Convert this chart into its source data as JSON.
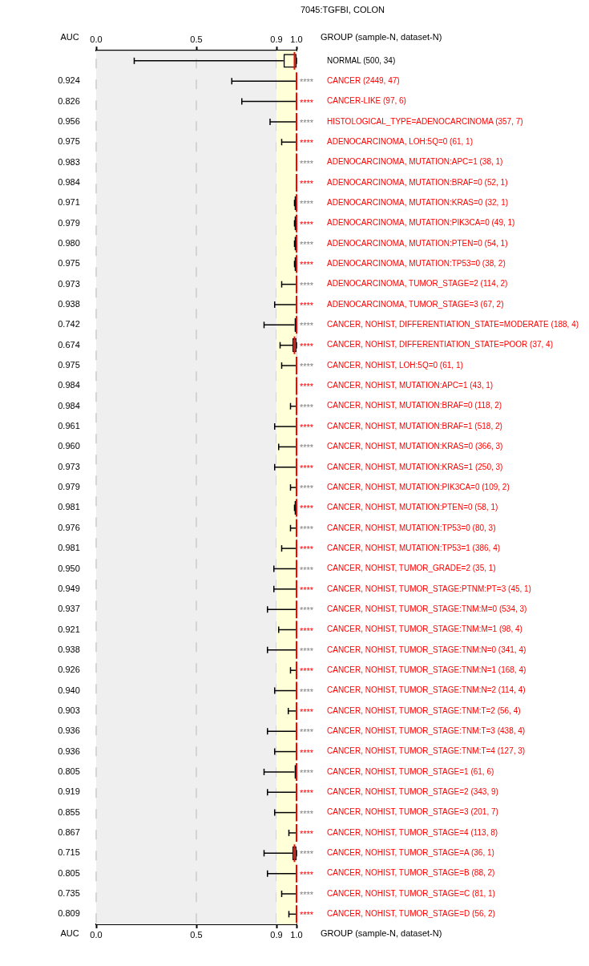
{
  "chart_data": {
    "type": "box",
    "orientation": "horizontal",
    "title": "7045:TGFBI, COLON",
    "ylabel": "GROUP (sample-N, dataset-N)",
    "categories": [
      "NORMAL (500, 34)",
      "CANCER (2449, 47)",
      "CANCER-LIKE (97, 6)",
      "HISTOLOGICAL_TYPE=ADENOCARCINOMA (357, 7)",
      "ADENOCARCINOMA, LOH:5Q=0 (61, 1)",
      "ADENOCARCINOMA, MUTATION:APC=1 (38, 1)",
      "ADENOCARCINOMA, MUTATION:BRAF=0 (52, 1)",
      "ADENOCARCINOMA, MUTATION:KRAS=0 (32, 1)",
      "ADENOCARCINOMA, MUTATION:PIK3CA=0 (49, 1)",
      "ADENOCARCINOMA, MUTATION:PTEN=0 (54, 1)",
      "ADENOCARCINOMA, MUTATION:TP53=0 (38, 2)",
      "ADENOCARCINOMA, TUMOR_STAGE=2 (114, 2)",
      "ADENOCARCINOMA, TUMOR_STAGE=3 (67, 2)",
      "CANCER, NOHIST, DIFFERENTIATION_STATE=MODERATE (188, 4)",
      "CANCER, NOHIST, DIFFERENTIATION_STATE=POOR (37, 4)",
      "CANCER, NOHIST, LOH:5Q=0 (61, 1)",
      "CANCER, NOHIST, MUTATION:APC=1 (43, 1)",
      "CANCER, NOHIST, MUTATION:BRAF=0 (118, 2)",
      "CANCER, NOHIST, MUTATION:BRAF=1 (518, 2)",
      "CANCER, NOHIST, MUTATION:KRAS=0 (366, 3)",
      "CANCER, NOHIST, MUTATION:KRAS=1 (250, 3)",
      "CANCER, NOHIST, MUTATION:PIK3CA=0 (109, 2)",
      "CANCER, NOHIST, MUTATION:PTEN=0 (58, 1)",
      "CANCER, NOHIST, MUTATION:TP53=0 (80, 3)",
      "CANCER, NOHIST, MUTATION:TP53=1 (386, 4)",
      "CANCER, NOHIST, TUMOR_GRADE=2 (35, 1)",
      "CANCER, NOHIST, TUMOR_STAGE:PTNM:PT=3 (45, 1)",
      "CANCER, NOHIST, TUMOR_STAGE:TNM:M=0 (534, 3)",
      "CANCER, NOHIST, TUMOR_STAGE:TNM:M=1 (98, 4)",
      "CANCER, NOHIST, TUMOR_STAGE:TNM:N=0 (341, 4)",
      "CANCER, NOHIST, TUMOR_STAGE:TNM:N=1 (168, 4)",
      "CANCER, NOHIST, TUMOR_STAGE:TNM:N=2 (114, 4)",
      "CANCER, NOHIST, TUMOR_STAGE:TNM:T=2 (56, 4)",
      "CANCER, NOHIST, TUMOR_STAGE:TNM:T=3 (438, 4)",
      "CANCER, NOHIST, TUMOR_STAGE:TNM:T=4 (127, 3)",
      "CANCER, NOHIST, TUMOR_STAGE=1 (61, 6)",
      "CANCER, NOHIST, TUMOR_STAGE=2 (343, 9)",
      "CANCER, NOHIST, TUMOR_STAGE=3 (201, 7)",
      "CANCER, NOHIST, TUMOR_STAGE=4 (113, 8)",
      "CANCER, NOHIST, TUMOR_STAGE=A (36, 1)",
      "CANCER, NOHIST, TUMOR_STAGE=B (88, 2)",
      "CANCER, NOHIST, TUMOR_STAGE=C (81, 1)",
      "CANCER, NOHIST, TUMOR_STAGE=D (56, 2)"
    ],
    "series": [
      {
        "color": "#000000",
        "value_labels": [
          null,
          "0.924",
          "0.826",
          "0.956",
          "0.975",
          "0.983",
          "0.984",
          "0.971",
          "0.979",
          "0.980",
          "0.975",
          "0.973",
          "0.938",
          "0.742",
          "0.674",
          "0.975",
          "0.984",
          "0.984",
          "0.961",
          "0.960",
          "0.973",
          "0.979",
          "0.981",
          "0.976",
          "0.981",
          "0.950",
          "0.949",
          "0.937",
          "0.921",
          "0.938",
          "0.926",
          "0.940",
          "0.903",
          "0.936",
          "0.936",
          "0.805",
          "0.919",
          "0.855",
          "0.867",
          "0.715",
          "0.805",
          "0.735",
          "0.809"
        ],
        "boxes": [
          {
            "low": 0.19,
            "q1": 0.935,
            "median": 0.99,
            "q3": 1.0,
            "high": 1.0
          },
          {
            "low": 0.677,
            "q1": 1.0,
            "median": 1.0,
            "q3": 1.0,
            "high": 1.0
          },
          {
            "low": 0.727,
            "q1": 1.0,
            "median": 1.0,
            "q3": 1.0,
            "high": 1.0
          },
          {
            "low": 0.868,
            "q1": 1.0,
            "median": 1.0,
            "q3": 1.0,
            "high": 1.0
          },
          {
            "low": 0.926,
            "q1": 1.0,
            "median": 1.0,
            "q3": 1.0,
            "high": 1.0
          },
          {
            "low": 1.0,
            "q1": 1.0,
            "median": 1.0,
            "q3": 1.0,
            "high": 1.0
          },
          {
            "low": 1.0,
            "q1": 1.0,
            "median": 1.0,
            "q3": 1.0,
            "high": 1.0
          },
          {
            "low": 0.99,
            "q1": 0.99,
            "median": 1.0,
            "q3": 1.0,
            "high": 1.0
          },
          {
            "low": 0.99,
            "q1": 0.99,
            "median": 1.0,
            "q3": 1.0,
            "high": 1.0
          },
          {
            "low": 0.99,
            "q1": 0.99,
            "median": 1.0,
            "q3": 1.0,
            "high": 1.0
          },
          {
            "low": 0.99,
            "q1": 0.99,
            "median": 1.0,
            "q3": 1.0,
            "high": 1.0
          },
          {
            "low": 0.926,
            "q1": 1.0,
            "median": 1.0,
            "q3": 1.0,
            "high": 1.0
          },
          {
            "low": 0.891,
            "q1": 1.0,
            "median": 1.0,
            "q3": 1.0,
            "high": 1.0
          },
          {
            "low": 0.838,
            "q1": 0.99,
            "median": 1.0,
            "q3": 1.0,
            "high": 1.0
          },
          {
            "low": 0.918,
            "q1": 0.98,
            "median": 0.99,
            "q3": 1.0,
            "high": 1.0
          },
          {
            "low": 0.926,
            "q1": 1.0,
            "median": 1.0,
            "q3": 1.0,
            "high": 1.0
          },
          {
            "low": 1.0,
            "q1": 1.0,
            "median": 1.0,
            "q3": 1.0,
            "high": 1.0
          },
          {
            "low": 0.97,
            "q1": 1.0,
            "median": 1.0,
            "q3": 1.0,
            "high": 1.0
          },
          {
            "low": 0.891,
            "q1": 1.0,
            "median": 1.0,
            "q3": 1.0,
            "high": 1.0
          },
          {
            "low": 0.911,
            "q1": 1.0,
            "median": 1.0,
            "q3": 1.0,
            "high": 1.0
          },
          {
            "low": 0.891,
            "q1": 1.0,
            "median": 1.0,
            "q3": 1.0,
            "high": 1.0
          },
          {
            "low": 0.97,
            "q1": 1.0,
            "median": 1.0,
            "q3": 1.0,
            "high": 1.0
          },
          {
            "low": 0.99,
            "q1": 0.99,
            "median": 1.0,
            "q3": 1.0,
            "high": 1.0
          },
          {
            "low": 0.97,
            "q1": 1.0,
            "median": 1.0,
            "q3": 1.0,
            "high": 1.0
          },
          {
            "low": 0.926,
            "q1": 1.0,
            "median": 1.0,
            "q3": 1.0,
            "high": 1.0
          },
          {
            "low": 0.887,
            "q1": 1.0,
            "median": 1.0,
            "q3": 1.0,
            "high": 1.0
          },
          {
            "low": 0.887,
            "q1": 1.0,
            "median": 1.0,
            "q3": 1.0,
            "high": 1.0
          },
          {
            "low": 0.855,
            "q1": 1.0,
            "median": 1.0,
            "q3": 1.0,
            "high": 1.0
          },
          {
            "low": 0.911,
            "q1": 1.0,
            "median": 1.0,
            "q3": 1.0,
            "high": 1.0
          },
          {
            "low": 0.855,
            "q1": 1.0,
            "median": 1.0,
            "q3": 1.0,
            "high": 1.0
          },
          {
            "low": 0.97,
            "q1": 1.0,
            "median": 1.0,
            "q3": 1.0,
            "high": 1.0
          },
          {
            "low": 0.891,
            "q1": 1.0,
            "median": 1.0,
            "q3": 1.0,
            "high": 1.0
          },
          {
            "low": 0.959,
            "q1": 1.0,
            "median": 1.0,
            "q3": 1.0,
            "high": 1.0
          },
          {
            "low": 0.855,
            "q1": 1.0,
            "median": 1.0,
            "q3": 1.0,
            "high": 1.0
          },
          {
            "low": 0.891,
            "q1": 1.0,
            "median": 1.0,
            "q3": 1.0,
            "high": 1.0
          },
          {
            "low": 0.838,
            "q1": 0.99,
            "median": 1.0,
            "q3": 1.0,
            "high": 1.0
          },
          {
            "low": 0.855,
            "q1": 1.0,
            "median": 1.0,
            "q3": 1.0,
            "high": 1.0
          },
          {
            "low": 0.891,
            "q1": 1.0,
            "median": 1.0,
            "q3": 1.0,
            "high": 1.0
          },
          {
            "low": 0.962,
            "q1": 1.0,
            "median": 1.0,
            "q3": 1.0,
            "high": 1.0
          },
          {
            "low": 0.838,
            "q1": 0.98,
            "median": 0.99,
            "q3": 1.0,
            "high": 1.0
          },
          {
            "low": 0.855,
            "q1": 1.0,
            "median": 1.0,
            "q3": 1.0,
            "high": 1.0
          },
          {
            "low": 0.926,
            "q1": 1.0,
            "median": 1.0,
            "q3": 1.0,
            "high": 1.0
          },
          {
            "low": 0.962,
            "q1": 1.0,
            "median": 1.0,
            "q3": 1.0,
            "high": 1.0
          }
        ]
      }
    ],
    "xlim": [
      0,
      1
    ],
    "xticks": [
      {
        "value": 0,
        "label": "0.0"
      },
      0.5,
      0.9,
      {
        "value": 1,
        "label": "1.0"
      }
    ],
    "x2lim": [
      0,
      1
    ],
    "x2ticks": [
      {
        "value": 0,
        "label": "0.0"
      },
      0.5,
      0.9,
      {
        "value": 1,
        "label": "1.0"
      }
    ],
    "grid": "x",
    "bands": [
      {
        "axis": "x",
        "from": 0.9,
        "to": 1.0,
        "color": "#ffffd8"
      }
    ],
    "annotations": [
      "AUC",
      "****",
      "****",
      "****",
      "****",
      "****",
      "****",
      "****",
      "****",
      "****",
      "****",
      "****",
      "****",
      "****",
      "****",
      "****",
      "****",
      "****",
      "****",
      "****",
      "****",
      "****",
      "****",
      "****",
      "****",
      "****",
      "****",
      "****",
      "****",
      "****",
      "****",
      "****",
      "****",
      "****",
      "****",
      "****",
      "****",
      "****",
      "****",
      "****",
      "****",
      "****",
      "****"
    ]
  }
}
